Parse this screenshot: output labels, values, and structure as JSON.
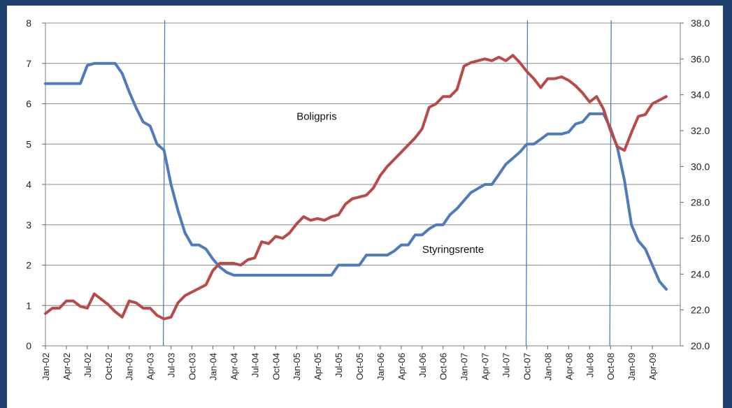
{
  "chart_data": {
    "type": "line",
    "title": "",
    "xlabel": "",
    "ylabel": "",
    "grid": true,
    "legend": "none",
    "x_ticks": [
      "Jan-02",
      "Apr-02",
      "Jul-02",
      "Oct-02",
      "Jan-03",
      "Apr-03",
      "Jul-03",
      "Oct-03",
      "Jan-04",
      "Apr-04",
      "Jul-04",
      "Oct-04",
      "Jan-05",
      "Apr-05",
      "Jul-05",
      "Oct-05",
      "Jan-06",
      "Apr-06",
      "Jul-06",
      "Oct-06",
      "Jan-07",
      "Apr-07",
      "Jul-07",
      "Oct-07",
      "Jan-08",
      "Apr-08",
      "Jul-08",
      "Oct-08",
      "Jan-09",
      "Apr-09"
    ],
    "x_range": [
      "Jan-02",
      "Aug-09"
    ],
    "y_left": {
      "range": [
        0,
        8
      ],
      "ticks": [
        "0",
        "1",
        "2",
        "3",
        "4",
        "5",
        "6",
        "7",
        "8"
      ]
    },
    "y_right": {
      "range": [
        20.0,
        38.0
      ],
      "ticks": [
        "20.0",
        "22.0",
        "24.0",
        "26.0",
        "28.0",
        "30.0",
        "32.0",
        "34.0",
        "36.0",
        "38.0"
      ]
    },
    "series": [
      {
        "name": "Styringsrente",
        "axis": "left",
        "color": "#4f7bbd",
        "points": [
          [
            "Jan-02",
            6.5
          ],
          [
            "Feb-02",
            6.5
          ],
          [
            "Mar-02",
            6.5
          ],
          [
            "Apr-02",
            6.5
          ],
          [
            "May-02",
            6.5
          ],
          [
            "Jun-02",
            6.5
          ],
          [
            "Jul-02",
            6.95
          ],
          [
            "Aug-02",
            7.0
          ],
          [
            "Sep-02",
            7.0
          ],
          [
            "Oct-02",
            7.0
          ],
          [
            "Nov-02",
            7.0
          ],
          [
            "Dec-02",
            6.75
          ],
          [
            "Jan-03",
            6.3
          ],
          [
            "Feb-03",
            5.9
          ],
          [
            "Mar-03",
            5.55
          ],
          [
            "Apr-03",
            5.45
          ],
          [
            "May-03",
            5.0
          ],
          [
            "Jun-03",
            4.85
          ],
          [
            "Jul-03",
            4.0
          ],
          [
            "Aug-03",
            3.35
          ],
          [
            "Sep-03",
            2.8
          ],
          [
            "Oct-03",
            2.5
          ],
          [
            "Nov-03",
            2.5
          ],
          [
            "Dec-03",
            2.4
          ],
          [
            "Jan-04",
            2.15
          ],
          [
            "Feb-04",
            1.95
          ],
          [
            "Mar-04",
            1.82
          ],
          [
            "Apr-04",
            1.75
          ],
          [
            "May-04",
            1.75
          ],
          [
            "Jun-04",
            1.75
          ],
          [
            "Jul-04",
            1.75
          ],
          [
            "Aug-04",
            1.75
          ],
          [
            "Sep-04",
            1.75
          ],
          [
            "Oct-04",
            1.75
          ],
          [
            "Nov-04",
            1.75
          ],
          [
            "Dec-04",
            1.75
          ],
          [
            "Jan-05",
            1.75
          ],
          [
            "Feb-05",
            1.75
          ],
          [
            "Mar-05",
            1.75
          ],
          [
            "Apr-05",
            1.75
          ],
          [
            "May-05",
            1.75
          ],
          [
            "Jun-05",
            1.75
          ],
          [
            "Jul-05",
            2.0
          ],
          [
            "Aug-05",
            2.0
          ],
          [
            "Sep-05",
            2.0
          ],
          [
            "Oct-05",
            2.0
          ],
          [
            "Nov-05",
            2.25
          ],
          [
            "Dec-05",
            2.25
          ],
          [
            "Jan-06",
            2.25
          ],
          [
            "Feb-06",
            2.25
          ],
          [
            "Mar-06",
            2.35
          ],
          [
            "Apr-06",
            2.5
          ],
          [
            "May-06",
            2.5
          ],
          [
            "Jun-06",
            2.75
          ],
          [
            "Jul-06",
            2.75
          ],
          [
            "Aug-06",
            2.9
          ],
          [
            "Sep-06",
            3.0
          ],
          [
            "Oct-06",
            3.0
          ],
          [
            "Nov-06",
            3.25
          ],
          [
            "Dec-06",
            3.4
          ],
          [
            "Jan-07",
            3.6
          ],
          [
            "Feb-07",
            3.8
          ],
          [
            "Mar-07",
            3.9
          ],
          [
            "Apr-07",
            4.0
          ],
          [
            "May-07",
            4.0
          ],
          [
            "Jun-07",
            4.25
          ],
          [
            "Jul-07",
            4.5
          ],
          [
            "Aug-07",
            4.65
          ],
          [
            "Sep-07",
            4.8
          ],
          [
            "Oct-07",
            5.0
          ],
          [
            "Nov-07",
            5.0
          ],
          [
            "Dec-07",
            5.12
          ],
          [
            "Jan-08",
            5.25
          ],
          [
            "Feb-08",
            5.25
          ],
          [
            "Mar-08",
            5.25
          ],
          [
            "Apr-08",
            5.3
          ],
          [
            "May-08",
            5.5
          ],
          [
            "Jun-08",
            5.55
          ],
          [
            "Jul-08",
            5.75
          ],
          [
            "Aug-08",
            5.75
          ],
          [
            "Sep-08",
            5.75
          ],
          [
            "Oct-08",
            5.4
          ],
          [
            "Nov-08",
            4.9
          ],
          [
            "Dec-08",
            4.1
          ],
          [
            "Jan-09",
            3.0
          ],
          [
            "Feb-09",
            2.6
          ],
          [
            "Mar-09",
            2.4
          ],
          [
            "Apr-09",
            2.0
          ],
          [
            "May-09",
            1.6
          ],
          [
            "Jun-09",
            1.4
          ]
        ]
      },
      {
        "name": "Boligpris",
        "axis": "right",
        "color": "#b94a48",
        "points": [
          [
            "Jan-02",
            21.8
          ],
          [
            "Feb-02",
            22.1
          ],
          [
            "Mar-02",
            22.1
          ],
          [
            "Apr-02",
            22.5
          ],
          [
            "May-02",
            22.5
          ],
          [
            "Jun-02",
            22.2
          ],
          [
            "Jul-02",
            22.1
          ],
          [
            "Aug-02",
            22.9
          ],
          [
            "Sep-02",
            22.6
          ],
          [
            "Oct-02",
            22.3
          ],
          [
            "Nov-02",
            21.9
          ],
          [
            "Dec-02",
            21.6
          ],
          [
            "Jan-03",
            22.5
          ],
          [
            "Feb-03",
            22.4
          ],
          [
            "Mar-03",
            22.1
          ],
          [
            "Apr-03",
            22.1
          ],
          [
            "May-03",
            21.7
          ],
          [
            "Jun-03",
            21.5
          ],
          [
            "Jul-03",
            21.6
          ],
          [
            "Aug-03",
            22.4
          ],
          [
            "Sep-03",
            22.8
          ],
          [
            "Oct-03",
            23.0
          ],
          [
            "Nov-03",
            23.2
          ],
          [
            "Dec-03",
            23.4
          ],
          [
            "Jan-04",
            24.2
          ],
          [
            "Feb-04",
            24.6
          ],
          [
            "Mar-04",
            24.6
          ],
          [
            "Apr-04",
            24.6
          ],
          [
            "May-04",
            24.5
          ],
          [
            "Jun-04",
            24.8
          ],
          [
            "Jul-04",
            24.9
          ],
          [
            "Aug-04",
            25.8
          ],
          [
            "Sep-04",
            25.7
          ],
          [
            "Oct-04",
            26.1
          ],
          [
            "Nov-04",
            26.0
          ],
          [
            "Dec-04",
            26.3
          ],
          [
            "Jan-05",
            26.8
          ],
          [
            "Feb-05",
            27.2
          ],
          [
            "Mar-05",
            27.0
          ],
          [
            "Apr-05",
            27.1
          ],
          [
            "May-05",
            27.0
          ],
          [
            "Jun-05",
            27.2
          ],
          [
            "Jul-05",
            27.3
          ],
          [
            "Aug-05",
            27.9
          ],
          [
            "Sep-05",
            28.2
          ],
          [
            "Oct-05",
            28.3
          ],
          [
            "Nov-05",
            28.4
          ],
          [
            "Dec-05",
            28.8
          ],
          [
            "Jan-06",
            29.5
          ],
          [
            "Feb-06",
            30.0
          ],
          [
            "Mar-06",
            30.4
          ],
          [
            "Apr-06",
            30.8
          ],
          [
            "May-06",
            31.2
          ],
          [
            "Jun-06",
            31.6
          ],
          [
            "Jul-06",
            32.1
          ],
          [
            "Aug-06",
            33.3
          ],
          [
            "Sep-06",
            33.5
          ],
          [
            "Oct-06",
            33.9
          ],
          [
            "Nov-06",
            33.9
          ],
          [
            "Dec-06",
            34.3
          ],
          [
            "Jan-07",
            35.6
          ],
          [
            "Feb-07",
            35.8
          ],
          [
            "Mar-07",
            35.9
          ],
          [
            "Apr-07",
            36.0
          ],
          [
            "May-07",
            35.9
          ],
          [
            "Jun-07",
            36.1
          ],
          [
            "Jul-07",
            35.9
          ],
          [
            "Aug-07",
            36.2
          ],
          [
            "Sep-07",
            35.8
          ],
          [
            "Oct-07",
            35.3
          ],
          [
            "Nov-07",
            34.9
          ],
          [
            "Dec-07",
            34.4
          ],
          [
            "Jan-08",
            34.9
          ],
          [
            "Feb-08",
            34.9
          ],
          [
            "Mar-08",
            35.0
          ],
          [
            "Apr-08",
            34.8
          ],
          [
            "May-08",
            34.5
          ],
          [
            "Jun-08",
            34.1
          ],
          [
            "Jul-08",
            33.6
          ],
          [
            "Aug-08",
            33.9
          ],
          [
            "Sep-08",
            33.2
          ],
          [
            "Oct-08",
            32.0
          ],
          [
            "Nov-08",
            31.1
          ],
          [
            "Dec-08",
            30.9
          ],
          [
            "Jan-09",
            31.9
          ],
          [
            "Feb-09",
            32.8
          ],
          [
            "Mar-09",
            32.9
          ],
          [
            "Apr-09",
            33.5
          ],
          [
            "May-09",
            33.7
          ],
          [
            "Jun-09",
            33.9
          ]
        ]
      }
    ],
    "vertical_markers": [
      "Jun-03",
      "Oct-07",
      "Oct-08"
    ],
    "annotations": [
      {
        "text": "Boligpris",
        "x": "Jan-05",
        "y_left": 5.6
      },
      {
        "text": "Styringsrente",
        "x": "Jul-06",
        "y_left": 2.3
      }
    ]
  }
}
